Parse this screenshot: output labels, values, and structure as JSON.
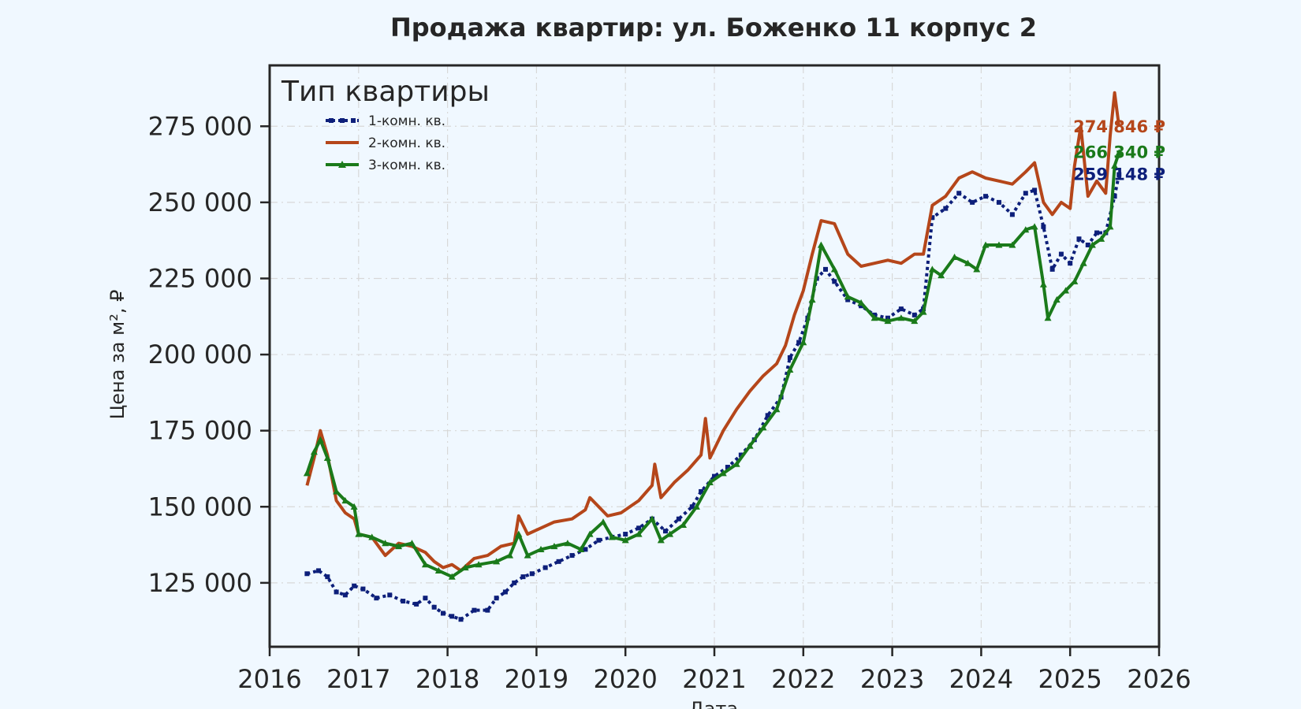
{
  "chart_data": {
    "type": "line",
    "title": "Продажа квартир: ул. Боженко 11 корпус 2",
    "xlabel": "Дата",
    "ylabel": "Цена за м², ₽",
    "xlim": [
      2016,
      2026
    ],
    "ylim": [
      104000,
      295000
    ],
    "x_ticks": [
      "2016",
      "2017",
      "2018",
      "2019",
      "2020",
      "2021",
      "2022",
      "2023",
      "2024",
      "2025",
      "2026"
    ],
    "y_ticks": [
      {
        "value": 125000,
        "label": "125 000"
      },
      {
        "value": 150000,
        "label": "150 000"
      },
      {
        "value": 175000,
        "label": "175 000"
      },
      {
        "value": 200000,
        "label": "200 000"
      },
      {
        "value": 225000,
        "label": "225 000"
      },
      {
        "value": 250000,
        "label": "250 000"
      },
      {
        "value": 275000,
        "label": "275 000"
      }
    ],
    "grid": true,
    "legend": {
      "title": "Тип квартиры",
      "placement": "top-left"
    },
    "series": [
      {
        "name": "1-комн. кв.",
        "color": "#0d1f7a",
        "style": "dotted",
        "end_label": "259 148 ₽",
        "end_value": 259148,
        "points": [
          [
            2016.42,
            128000
          ],
          [
            2016.55,
            129000
          ],
          [
            2016.65,
            127000
          ],
          [
            2016.75,
            122000
          ],
          [
            2016.85,
            121000
          ],
          [
            2016.95,
            124000
          ],
          [
            2017.05,
            123000
          ],
          [
            2017.2,
            120000
          ],
          [
            2017.35,
            121000
          ],
          [
            2017.5,
            119000
          ],
          [
            2017.65,
            118000
          ],
          [
            2017.75,
            120000
          ],
          [
            2017.85,
            117000
          ],
          [
            2017.95,
            115000
          ],
          [
            2018.05,
            114000
          ],
          [
            2018.15,
            113000
          ],
          [
            2018.3,
            116000
          ],
          [
            2018.45,
            116000
          ],
          [
            2018.55,
            120000
          ],
          [
            2018.65,
            122000
          ],
          [
            2018.75,
            125000
          ],
          [
            2018.85,
            127000
          ],
          [
            2018.95,
            128000
          ],
          [
            2019.1,
            130000
          ],
          [
            2019.25,
            132000
          ],
          [
            2019.4,
            134000
          ],
          [
            2019.55,
            136000
          ],
          [
            2019.7,
            139000
          ],
          [
            2019.85,
            140000
          ],
          [
            2020.0,
            141000
          ],
          [
            2020.15,
            143000
          ],
          [
            2020.3,
            146000
          ],
          [
            2020.45,
            142000
          ],
          [
            2020.6,
            146000
          ],
          [
            2020.75,
            150000
          ],
          [
            2020.85,
            155000
          ],
          [
            2021.0,
            160000
          ],
          [
            2021.15,
            163000
          ],
          [
            2021.3,
            167000
          ],
          [
            2021.45,
            172000
          ],
          [
            2021.6,
            180000
          ],
          [
            2021.75,
            186000
          ],
          [
            2021.85,
            199000
          ],
          [
            2021.95,
            204000
          ],
          [
            2022.05,
            212000
          ],
          [
            2022.15,
            225000
          ],
          [
            2022.25,
            228000
          ],
          [
            2022.35,
            224000
          ],
          [
            2022.5,
            218000
          ],
          [
            2022.65,
            216000
          ],
          [
            2022.8,
            213000
          ],
          [
            2022.95,
            212000
          ],
          [
            2023.1,
            215000
          ],
          [
            2023.25,
            213000
          ],
          [
            2023.35,
            215000
          ],
          [
            2023.45,
            245000
          ],
          [
            2023.6,
            248000
          ],
          [
            2023.75,
            253000
          ],
          [
            2023.9,
            250000
          ],
          [
            2024.05,
            252000
          ],
          [
            2024.2,
            250000
          ],
          [
            2024.35,
            246000
          ],
          [
            2024.5,
            253000
          ],
          [
            2024.6,
            254000
          ],
          [
            2024.7,
            242000
          ],
          [
            2024.8,
            228000
          ],
          [
            2024.9,
            233000
          ],
          [
            2025.0,
            230000
          ],
          [
            2025.1,
            238000
          ],
          [
            2025.2,
            236000
          ],
          [
            2025.3,
            240000
          ],
          [
            2025.4,
            240000
          ],
          [
            2025.5,
            252000
          ],
          [
            2025.55,
            259148
          ]
        ]
      },
      {
        "name": "2-комн. кв.",
        "color": "#b5461a",
        "style": "solid",
        "end_label": "274 846 ₽",
        "end_value": 274846,
        "points": [
          [
            2016.42,
            157000
          ],
          [
            2016.5,
            166000
          ],
          [
            2016.57,
            175000
          ],
          [
            2016.65,
            167000
          ],
          [
            2016.75,
            152000
          ],
          [
            2016.85,
            148000
          ],
          [
            2016.95,
            146000
          ],
          [
            2017.0,
            141000
          ],
          [
            2017.15,
            140000
          ],
          [
            2017.3,
            134000
          ],
          [
            2017.45,
            138000
          ],
          [
            2017.6,
            137000
          ],
          [
            2017.75,
            135000
          ],
          [
            2017.85,
            132000
          ],
          [
            2017.95,
            130000
          ],
          [
            2018.05,
            131000
          ],
          [
            2018.15,
            129000
          ],
          [
            2018.3,
            133000
          ],
          [
            2018.45,
            134000
          ],
          [
            2018.6,
            137000
          ],
          [
            2018.75,
            138000
          ],
          [
            2018.8,
            147000
          ],
          [
            2018.9,
            141000
          ],
          [
            2019.05,
            143000
          ],
          [
            2019.2,
            145000
          ],
          [
            2019.4,
            146000
          ],
          [
            2019.55,
            149000
          ],
          [
            2019.6,
            153000
          ],
          [
            2019.7,
            150000
          ],
          [
            2019.8,
            147000
          ],
          [
            2019.95,
            148000
          ],
          [
            2020.15,
            152000
          ],
          [
            2020.3,
            157000
          ],
          [
            2020.33,
            164000
          ],
          [
            2020.4,
            153000
          ],
          [
            2020.55,
            158000
          ],
          [
            2020.7,
            162000
          ],
          [
            2020.85,
            167000
          ],
          [
            2020.9,
            179000
          ],
          [
            2020.95,
            166000
          ],
          [
            2021.1,
            175000
          ],
          [
            2021.25,
            182000
          ],
          [
            2021.4,
            188000
          ],
          [
            2021.55,
            193000
          ],
          [
            2021.7,
            197000
          ],
          [
            2021.8,
            203000
          ],
          [
            2021.9,
            213000
          ],
          [
            2022.0,
            221000
          ],
          [
            2022.1,
            233000
          ],
          [
            2022.2,
            244000
          ],
          [
            2022.35,
            243000
          ],
          [
            2022.5,
            233000
          ],
          [
            2022.65,
            229000
          ],
          [
            2022.8,
            230000
          ],
          [
            2022.95,
            231000
          ],
          [
            2023.1,
            230000
          ],
          [
            2023.25,
            233000
          ],
          [
            2023.35,
            233000
          ],
          [
            2023.45,
            249000
          ],
          [
            2023.6,
            252000
          ],
          [
            2023.75,
            258000
          ],
          [
            2023.9,
            260000
          ],
          [
            2024.05,
            258000
          ],
          [
            2024.2,
            257000
          ],
          [
            2024.35,
            256000
          ],
          [
            2024.5,
            260000
          ],
          [
            2024.6,
            263000
          ],
          [
            2024.7,
            250000
          ],
          [
            2024.8,
            246000
          ],
          [
            2024.9,
            250000
          ],
          [
            2025.0,
            248000
          ],
          [
            2025.05,
            262000
          ],
          [
            2025.12,
            275000
          ],
          [
            2025.2,
            252000
          ],
          [
            2025.3,
            257000
          ],
          [
            2025.4,
            253000
          ],
          [
            2025.45,
            272000
          ],
          [
            2025.5,
            286000
          ],
          [
            2025.55,
            274846
          ]
        ]
      },
      {
        "name": "3-комн. кв.",
        "color": "#1a7a1a",
        "style": "solid-triangles",
        "end_label": "266 340 ₽",
        "end_value": 266340,
        "points": [
          [
            2016.42,
            161000
          ],
          [
            2016.5,
            168000
          ],
          [
            2016.57,
            172000
          ],
          [
            2016.65,
            166000
          ],
          [
            2016.75,
            155000
          ],
          [
            2016.85,
            152000
          ],
          [
            2016.95,
            150000
          ],
          [
            2017.0,
            141000
          ],
          [
            2017.15,
            140000
          ],
          [
            2017.3,
            138000
          ],
          [
            2017.45,
            137000
          ],
          [
            2017.6,
            138000
          ],
          [
            2017.75,
            131000
          ],
          [
            2017.9,
            129000
          ],
          [
            2018.05,
            127000
          ],
          [
            2018.2,
            130000
          ],
          [
            2018.35,
            131000
          ],
          [
            2018.55,
            132000
          ],
          [
            2018.7,
            134000
          ],
          [
            2018.8,
            141000
          ],
          [
            2018.9,
            134000
          ],
          [
            2019.05,
            136000
          ],
          [
            2019.2,
            137000
          ],
          [
            2019.35,
            138000
          ],
          [
            2019.5,
            136000
          ],
          [
            2019.6,
            141000
          ],
          [
            2019.75,
            145000
          ],
          [
            2019.85,
            140000
          ],
          [
            2020.0,
            139000
          ],
          [
            2020.15,
            141000
          ],
          [
            2020.3,
            146000
          ],
          [
            2020.4,
            139000
          ],
          [
            2020.5,
            141000
          ],
          [
            2020.65,
            144000
          ],
          [
            2020.8,
            150000
          ],
          [
            2020.95,
            158000
          ],
          [
            2021.1,
            161000
          ],
          [
            2021.25,
            164000
          ],
          [
            2021.4,
            170000
          ],
          [
            2021.55,
            176000
          ],
          [
            2021.7,
            182000
          ],
          [
            2021.85,
            195000
          ],
          [
            2022.0,
            204000
          ],
          [
            2022.1,
            218000
          ],
          [
            2022.2,
            236000
          ],
          [
            2022.35,
            228000
          ],
          [
            2022.5,
            219000
          ],
          [
            2022.65,
            217000
          ],
          [
            2022.8,
            212000
          ],
          [
            2022.95,
            211000
          ],
          [
            2023.1,
            212000
          ],
          [
            2023.25,
            211000
          ],
          [
            2023.35,
            214000
          ],
          [
            2023.45,
            228000
          ],
          [
            2023.55,
            226000
          ],
          [
            2023.7,
            232000
          ],
          [
            2023.85,
            230000
          ],
          [
            2023.95,
            228000
          ],
          [
            2024.05,
            236000
          ],
          [
            2024.2,
            236000
          ],
          [
            2024.35,
            236000
          ],
          [
            2024.5,
            241000
          ],
          [
            2024.6,
            242000
          ],
          [
            2024.7,
            223000
          ],
          [
            2024.75,
            212000
          ],
          [
            2024.85,
            218000
          ],
          [
            2024.95,
            221000
          ],
          [
            2025.05,
            224000
          ],
          [
            2025.15,
            230000
          ],
          [
            2025.25,
            236000
          ],
          [
            2025.35,
            238000
          ],
          [
            2025.45,
            242000
          ],
          [
            2025.5,
            262000
          ],
          [
            2025.55,
            266340
          ]
        ]
      }
    ]
  }
}
